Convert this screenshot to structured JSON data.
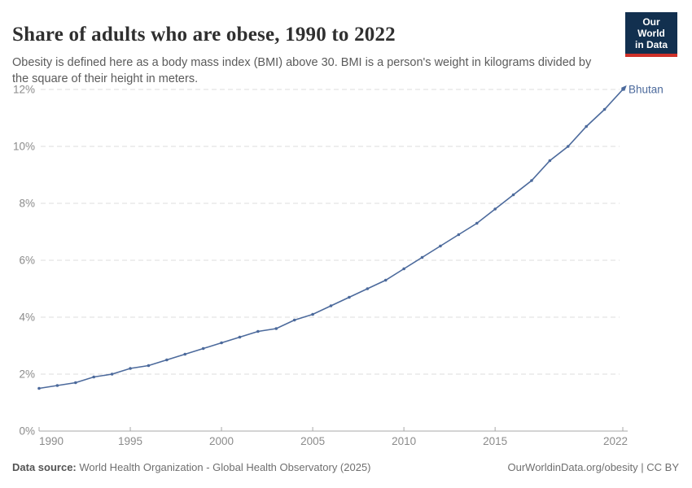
{
  "header": {
    "title": "Share of adults who are obese, 1990 to 2022",
    "subtitle": "Obesity is defined here as a body mass index (BMI) above 30. BMI is a person's weight in kilograms divided by the square of their height in meters.",
    "logo": {
      "line1": "Our World",
      "line2": "in Data",
      "bg_color": "#12304F",
      "accent_color": "#CF3129"
    }
  },
  "chart_data": {
    "type": "line",
    "title": "Share of adults who are obese, 1990 to 2022",
    "entity": "Bhutan",
    "unit": "%",
    "x": [
      1990,
      1991,
      1992,
      1993,
      1994,
      1995,
      1996,
      1997,
      1998,
      1999,
      2000,
      2001,
      2002,
      2003,
      2004,
      2005,
      2006,
      2007,
      2008,
      2009,
      2010,
      2011,
      2012,
      2013,
      2014,
      2015,
      2016,
      2017,
      2018,
      2019,
      2020,
      2021,
      2022
    ],
    "series": [
      {
        "name": "Bhutan",
        "color": "#4C6A9C",
        "values": [
          1.5,
          1.6,
          1.7,
          1.9,
          2.0,
          2.2,
          2.3,
          2.5,
          2.7,
          2.9,
          3.1,
          3.3,
          3.5,
          3.6,
          3.9,
          4.1,
          4.4,
          4.7,
          5.0,
          5.3,
          5.7,
          6.1,
          6.5,
          6.9,
          7.3,
          7.8,
          8.3,
          8.8,
          9.5,
          10.0,
          10.7,
          11.3,
          12.0
        ]
      }
    ],
    "xlim": [
      1990,
      2022
    ],
    "ylim": [
      0,
      12
    ],
    "x_tick_values": [
      1990,
      1995,
      2000,
      2005,
      2010,
      2015,
      2022
    ],
    "y_tick_values": [
      0,
      2,
      4,
      6,
      8,
      10,
      12
    ],
    "y_tick_suffix": "%",
    "grid": "horizontal-dashed",
    "legend_position": "end-of-line",
    "colors": {
      "grid_line": "#dcdcdc",
      "axis_line": "#a8a8a8",
      "tick_label": "#8b8b8b"
    }
  },
  "footer": {
    "datasource_label": "Data source:",
    "datasource_text": " World Health Organization - Global Health Observatory (2025)",
    "link_text": "OurWorldinData.org/obesity | CC BY"
  }
}
